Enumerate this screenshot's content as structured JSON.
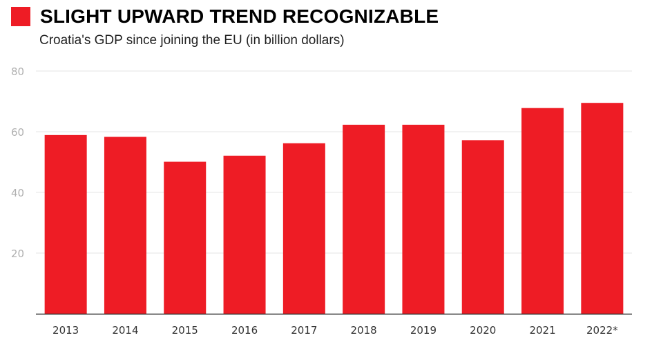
{
  "header": {
    "title": "SLIGHT UPWARD TREND RECOGNIZABLE",
    "subtitle": "Croatia's GDP since joining the EU (in billion dollars)"
  },
  "colors": {
    "accent": "#ee1c25",
    "grid": "#e6e6e6",
    "axis": "#333333"
  },
  "chart_data": {
    "type": "bar",
    "title": "SLIGHT UPWARD TREND RECOGNIZABLE",
    "subtitle": "Croatia's GDP since joining the EU (in billion dollars)",
    "categories": [
      "2013",
      "2014",
      "2015",
      "2016",
      "2017",
      "2018",
      "2019",
      "2020",
      "2021",
      "2022*"
    ],
    "values": [
      58.9,
      58.3,
      50.1,
      52.1,
      56.2,
      62.3,
      62.3,
      57.2,
      67.8,
      69.5
    ],
    "yticks": [
      20,
      40,
      60,
      80
    ],
    "ylim": [
      0,
      80
    ],
    "grid": true,
    "legend": "none",
    "xlabel": "",
    "ylabel": ""
  }
}
